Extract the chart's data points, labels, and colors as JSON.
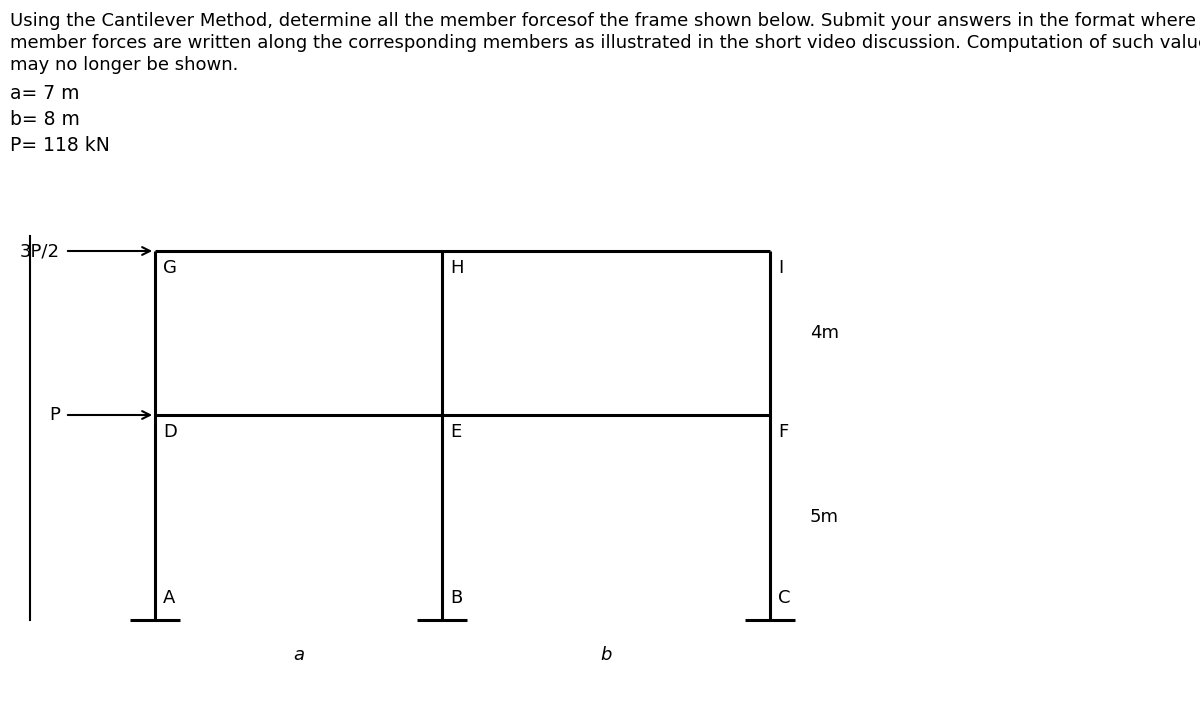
{
  "title_line1": "Using the Cantilever Method, determine all the member forcesof the frame shown below. Submit your answers in the format where the",
  "title_line2": "member forces are written along the corresponding members as illustrated in the short video discussion. Computation of such values",
  "title_line3": "may no longer be shown.",
  "param_a": "a= 7 m",
  "param_b": "b= 8 m",
  "param_P": "P= 118 kN",
  "background_color": "#ffffff",
  "frame_color": "#000000",
  "font_size_title": 13.0,
  "font_size_params": 13.5,
  "font_size_nodes": 13,
  "font_size_dims": 13,
  "load_top": "3P/2",
  "load_mid": "P",
  "dim_4m": "4m",
  "dim_5m": "5m",
  "dim_a": "a",
  "dim_b": "b",
  "nodes": [
    "G",
    "H",
    "I",
    "D",
    "E",
    "F",
    "A",
    "B",
    "C"
  ]
}
